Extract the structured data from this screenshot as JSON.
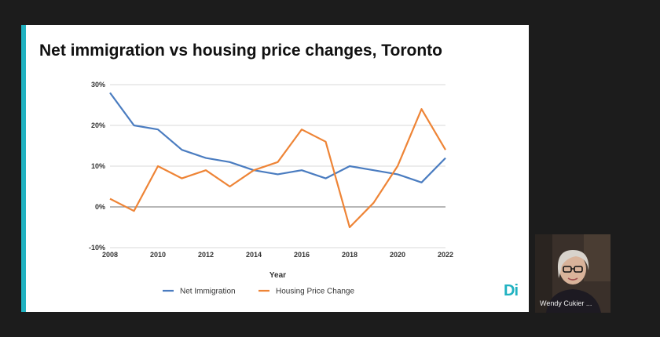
{
  "slide": {
    "title": "Net immigration vs housing price changes, Toronto",
    "accent_color": "#20b2c1",
    "logo_text": "Di"
  },
  "chart_data": {
    "type": "line",
    "title": "Net immigration vs housing price changes, Toronto",
    "xlabel": "Year",
    "ylabel": "",
    "x": [
      2008,
      2009,
      2010,
      2011,
      2012,
      2013,
      2014,
      2015,
      2016,
      2017,
      2018,
      2019,
      2020,
      2021,
      2022
    ],
    "x_tick_labels": [
      "2008",
      "2010",
      "2012",
      "2014",
      "2016",
      "2018",
      "2020",
      "2022"
    ],
    "x_tick_values": [
      2008,
      2010,
      2012,
      2014,
      2016,
      2018,
      2020,
      2022
    ],
    "y_tick_labels": [
      "30%",
      "20%",
      "10%",
      "0%",
      "-10%"
    ],
    "y_tick_values": [
      30,
      20,
      10,
      0,
      -10
    ],
    "ylim": [
      -10,
      30
    ],
    "xlim": [
      2008,
      2022
    ],
    "grid": true,
    "legend_position": "bottom",
    "series": [
      {
        "name": "Net Immigration",
        "color": "#4a7cc0",
        "values": [
          28,
          20,
          19,
          14,
          12,
          11,
          9,
          8,
          9,
          7,
          10,
          9,
          8,
          6,
          12
        ]
      },
      {
        "name": "Housing Price Change",
        "color": "#ee8436",
        "values": [
          2,
          -1,
          10,
          7,
          9,
          5,
          9,
          11,
          19,
          16,
          -5,
          1,
          10,
          24,
          14
        ]
      }
    ]
  },
  "video": {
    "participant_name": "Wendy Cukier ..."
  }
}
